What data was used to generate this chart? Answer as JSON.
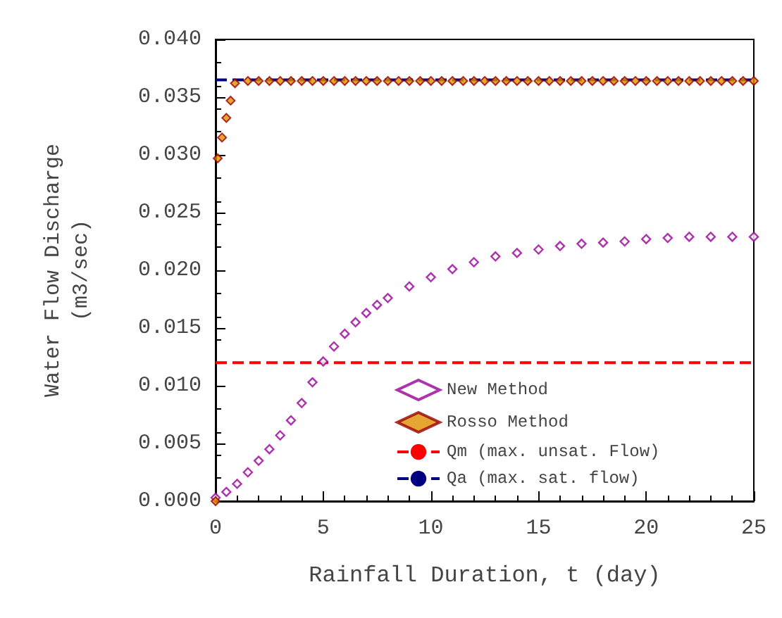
{
  "chart_data": {
    "type": "scatter",
    "xlabel": "Rainfall Duration, t (day)",
    "ylabel": "Water Flow Discharge\n(m3/sec)",
    "xlim": [
      0,
      25
    ],
    "xticks": [
      0,
      5,
      10,
      15,
      20,
      25
    ],
    "ylim": [
      0,
      0.04
    ],
    "yticks": [
      {
        "value": 0,
        "label": "0.000"
      },
      {
        "value": 0.005,
        "label": "0.005"
      },
      {
        "value": 0.01,
        "label": "0.010"
      },
      {
        "value": 0.015,
        "label": "0.015"
      },
      {
        "value": 0.02,
        "label": "0.020"
      },
      {
        "value": 0.025,
        "label": "0.025"
      },
      {
        "value": 0.03,
        "label": "0.030"
      },
      {
        "value": 0.035,
        "label": "0.035"
      },
      {
        "value": 0.04,
        "label": "0.040"
      }
    ],
    "grid": false,
    "legend": "bottom right",
    "marker": "diamond",
    "series": [
      {
        "name": "New Method",
        "color": "#990099",
        "x": [
          0,
          0.5,
          1,
          1.5,
          2,
          2.5,
          3,
          3.5,
          4,
          4.5,
          5,
          5.5,
          6,
          6.5,
          7,
          7.5,
          8,
          9,
          10,
          11,
          12,
          13,
          14,
          15,
          16,
          17,
          18,
          19,
          20,
          21,
          22,
          23,
          24,
          25
        ],
        "values": [
          0.0003,
          0.0008,
          0.0015,
          0.0025,
          0.0035,
          0.0045,
          0.0057,
          0.007,
          0.0085,
          0.0103,
          0.0121,
          0.0134,
          0.0145,
          0.0155,
          0.0163,
          0.017,
          0.0176,
          0.0186,
          0.0194,
          0.0201,
          0.0207,
          0.0212,
          0.0215,
          0.0218,
          0.0221,
          0.0223,
          0.0224,
          0.0225,
          0.0227,
          0.0228,
          0.0229,
          0.0229,
          0.0229,
          0.0229
        ]
      },
      {
        "name": "Rosso Method",
        "color": "#e09000",
        "x": [
          0,
          0.1,
          0.3,
          0.5,
          0.7,
          0.9,
          1.5,
          2,
          2.5,
          3,
          3.5,
          4,
          4.5,
          5,
          5.5,
          6,
          6.5,
          7,
          7.5,
          8,
          8.5,
          9,
          9.5,
          10,
          10.5,
          11,
          11.5,
          12,
          12.5,
          13,
          13.5,
          14,
          14.5,
          15,
          15.5,
          16,
          16.5,
          17,
          17.5,
          18,
          18.5,
          19,
          19.5,
          20,
          20.5,
          21,
          21.5,
          22,
          22.5,
          23,
          23.5,
          24,
          24.5,
          25
        ],
        "values": [
          0,
          0.0297,
          0.0315,
          0.0332,
          0.0347,
          0.0362,
          0.0364,
          0.0364,
          0.0364,
          0.0364,
          0.0364,
          0.0364,
          0.0364,
          0.0364,
          0.0364,
          0.0364,
          0.0364,
          0.0364,
          0.0364,
          0.0364,
          0.0364,
          0.0364,
          0.0364,
          0.0364,
          0.0364,
          0.0364,
          0.0364,
          0.0364,
          0.0364,
          0.0364,
          0.0364,
          0.0364,
          0.0364,
          0.0364,
          0.0364,
          0.0364,
          0.0364,
          0.0364,
          0.0364,
          0.0364,
          0.0364,
          0.0364,
          0.0364,
          0.0364,
          0.0364,
          0.0364,
          0.0364,
          0.0364,
          0.0364,
          0.0364,
          0.0364,
          0.0364,
          0.0364,
          0.0364
        ]
      }
    ],
    "ref_lines": [
      {
        "axis": "y",
        "value": 0.012,
        "label": "Qm (max. unsat. Flow)",
        "color": "#ff0000",
        "line_style": "dashed"
      },
      {
        "axis": "y",
        "value": 0.0365,
        "label": "Qa (max. sat. flow)",
        "color": "#000080",
        "line_style": "dashed"
      }
    ]
  }
}
